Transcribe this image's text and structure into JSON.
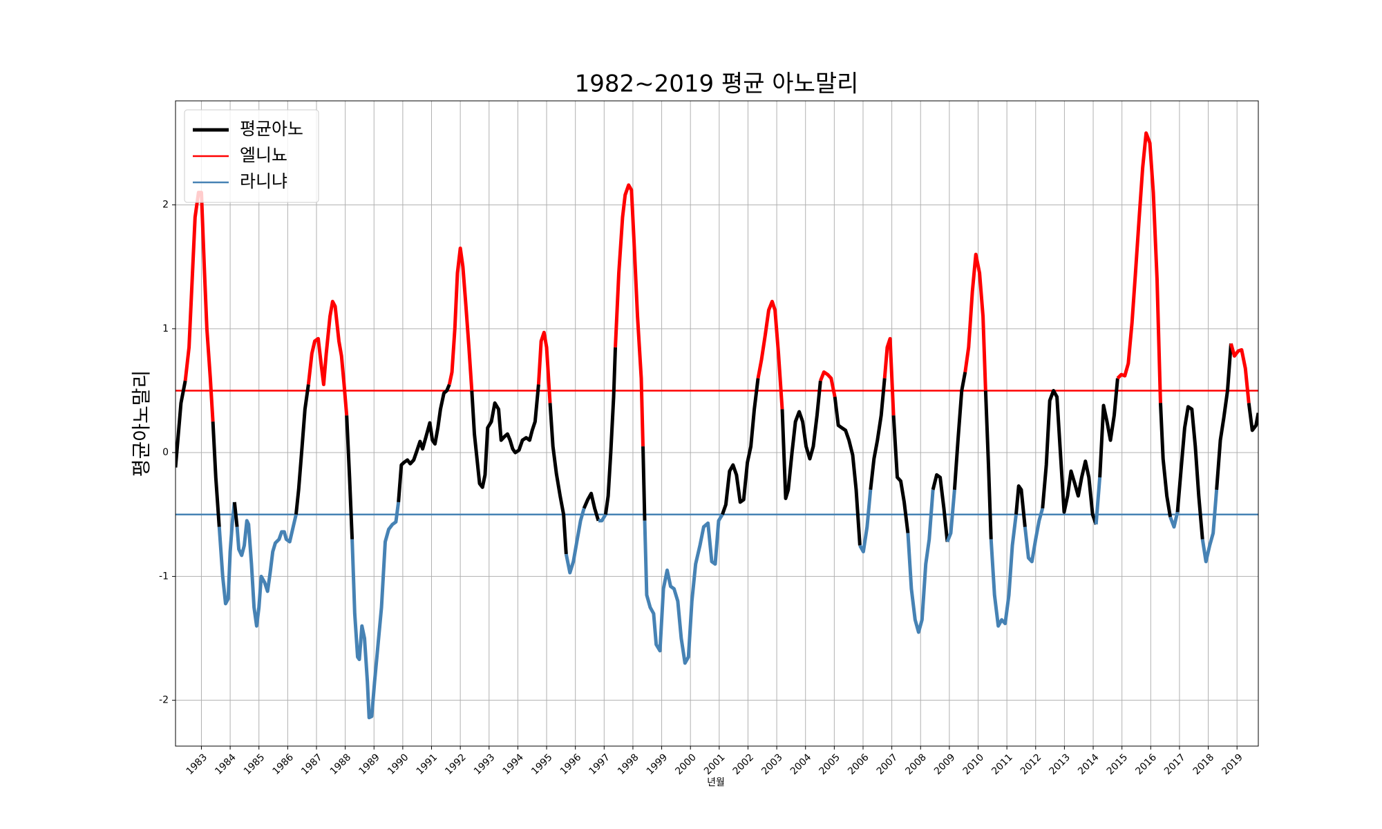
{
  "chart_data": {
    "type": "line",
    "title": "1982~2019 평균 아노말리",
    "x_label": "년월",
    "y_label": "평균아노말리",
    "series": [
      {
        "name": "평균아노",
        "color": "#000000",
        "x": [
          1982.1,
          1982.29,
          1982.44,
          1982.57,
          1982.66,
          1982.78,
          1982.9,
          1983.0,
          1983.1,
          1983.19,
          1983.31,
          1983.4,
          1983.5,
          1983.62,
          1983.74,
          1983.84,
          1983.93,
          1984.0,
          1984.08,
          1984.15,
          1984.24,
          1984.3,
          1984.4,
          1984.49,
          1984.58,
          1984.64,
          1984.74,
          1984.83,
          1984.92,
          1985.0,
          1985.08,
          1985.2,
          1985.3,
          1985.39,
          1985.48,
          1985.57,
          1985.7,
          1985.79,
          1985.88,
          1985.95,
          1986.07,
          1986.16,
          1986.29,
          1986.38,
          1986.5,
          1986.6,
          1986.72,
          1986.84,
          1986.94,
          1987.06,
          1987.16,
          1987.25,
          1987.34,
          1987.47,
          1987.56,
          1987.65,
          1987.78,
          1987.87,
          1987.96,
          1988.05,
          1988.15,
          1988.24,
          1988.33,
          1988.43,
          1988.49,
          1988.58,
          1988.67,
          1988.77,
          1988.83,
          1988.92,
          1989.02,
          1989.14,
          1989.26,
          1989.39,
          1989.51,
          1989.64,
          1989.76,
          1989.85,
          1989.95,
          1990.04,
          1990.16,
          1990.26,
          1990.38,
          1990.47,
          1990.6,
          1990.69,
          1990.81,
          1990.94,
          1991.03,
          1991.12,
          1991.22,
          1991.31,
          1991.43,
          1991.53,
          1991.62,
          1991.71,
          1991.81,
          1991.9,
          1992.0,
          1992.09,
          1992.19,
          1992.3,
          1992.4,
          1992.49,
          1992.58,
          1992.67,
          1992.77,
          1992.86,
          1992.95,
          1993.08,
          1993.2,
          1993.33,
          1993.42,
          1993.54,
          1993.64,
          1993.73,
          1993.82,
          1993.91,
          1994.04,
          1994.16,
          1994.29,
          1994.41,
          1994.5,
          1994.6,
          1994.72,
          1994.81,
          1994.91,
          1995.0,
          1995.12,
          1995.22,
          1995.34,
          1995.47,
          1995.59,
          1995.68,
          1995.81,
          1995.93,
          1996.05,
          1996.18,
          1996.3,
          1996.43,
          1996.55,
          1996.67,
          1996.8,
          1996.92,
          1997.05,
          1997.14,
          1997.23,
          1997.33,
          1997.39,
          1997.51,
          1997.64,
          1997.73,
          1997.85,
          1997.95,
          1998.04,
          1998.16,
          1998.29,
          1998.35,
          1998.41,
          1998.48,
          1998.6,
          1998.72,
          1998.81,
          1998.94,
          1999.06,
          1999.19,
          1999.31,
          1999.43,
          1999.56,
          1999.68,
          1999.81,
          1999.93,
          2000.05,
          2000.18,
          2000.33,
          2000.46,
          2000.61,
          2000.74,
          2000.86,
          2000.98,
          2001.11,
          2001.23,
          2001.36,
          2001.48,
          2001.6,
          2001.73,
          2001.85,
          2001.98,
          2002.1,
          2002.22,
          2002.35,
          2002.47,
          2002.6,
          2002.72,
          2002.84,
          2002.94,
          2003.06,
          2003.19,
          2003.31,
          2003.4,
          2003.53,
          2003.65,
          2003.78,
          2003.9,
          2004.02,
          2004.15,
          2004.27,
          2004.4,
          2004.52,
          2004.64,
          2004.77,
          2004.89,
          2005.02,
          2005.14,
          2005.26,
          2005.39,
          2005.51,
          2005.64,
          2005.76,
          2005.89,
          2006.01,
          2006.14,
          2006.26,
          2006.38,
          2006.5,
          2006.63,
          2006.75,
          2006.84,
          2006.94,
          2007.06,
          2007.19,
          2007.31,
          2007.43,
          2007.56,
          2007.68,
          2007.81,
          2007.93,
          2008.05,
          2008.18,
          2008.3,
          2008.43,
          2008.56,
          2008.68,
          2008.81,
          2008.93,
          2009.05,
          2009.18,
          2009.3,
          2009.43,
          2009.55,
          2009.67,
          2009.8,
          2009.92,
          2010.05,
          2010.17,
          2010.26,
          2010.36,
          2010.45,
          2010.57,
          2010.7,
          2010.82,
          2010.94,
          2011.07,
          2011.19,
          2011.32,
          2011.41,
          2011.5,
          2011.63,
          2011.75,
          2011.87,
          2012.0,
          2012.12,
          2012.24,
          2012.37,
          2012.49,
          2012.62,
          2012.74,
          2012.86,
          2012.99,
          2013.11,
          2013.23,
          2013.36,
          2013.48,
          2013.6,
          2013.73,
          2013.85,
          2013.98,
          2014.1,
          2014.23,
          2014.36,
          2014.48,
          2014.6,
          2014.73,
          2014.85,
          2014.98,
          2015.1,
          2015.22,
          2015.35,
          2015.47,
          2015.6,
          2015.72,
          2015.84,
          2015.97,
          2016.09,
          2016.22,
          2016.34,
          2016.43,
          2016.56,
          2016.68,
          2016.81,
          2016.93,
          2017.05,
          2017.18,
          2017.3,
          2017.43,
          2017.55,
          2017.67,
          2017.8,
          2017.92,
          2018.05,
          2018.17,
          2018.29,
          2018.42,
          2018.54,
          2018.67,
          2018.79,
          2018.91,
          2019.04,
          2019.16,
          2019.29,
          2019.41,
          2019.53,
          2019.66,
          2019.74
        ],
        "values": [
          -0.12,
          0.4,
          0.58,
          0.85,
          1.3,
          1.9,
          2.1,
          2.1,
          1.5,
          1.0,
          0.6,
          0.25,
          -0.2,
          -0.6,
          -1.0,
          -1.22,
          -1.18,
          -0.8,
          -0.55,
          -0.4,
          -0.6,
          -0.78,
          -0.83,
          -0.75,
          -0.55,
          -0.58,
          -0.9,
          -1.25,
          -1.4,
          -1.25,
          -1.0,
          -1.05,
          -1.12,
          -0.97,
          -0.8,
          -0.73,
          -0.7,
          -0.64,
          -0.64,
          -0.7,
          -0.72,
          -0.63,
          -0.5,
          -0.3,
          0.05,
          0.35,
          0.55,
          0.8,
          0.9,
          0.92,
          0.72,
          0.55,
          0.8,
          1.1,
          1.22,
          1.18,
          0.9,
          0.78,
          0.55,
          0.3,
          -0.2,
          -0.7,
          -1.3,
          -1.65,
          -1.67,
          -1.4,
          -1.5,
          -1.85,
          -2.14,
          -2.13,
          -1.85,
          -1.55,
          -1.25,
          -0.72,
          -0.62,
          -0.58,
          -0.56,
          -0.4,
          -0.1,
          -0.08,
          -0.06,
          -0.09,
          -0.06,
          0.0,
          0.09,
          0.03,
          0.13,
          0.24,
          0.1,
          0.07,
          0.2,
          0.35,
          0.48,
          0.5,
          0.55,
          0.65,
          1.0,
          1.45,
          1.65,
          1.5,
          1.2,
          0.85,
          0.5,
          0.15,
          -0.05,
          -0.25,
          -0.28,
          -0.18,
          0.2,
          0.25,
          0.4,
          0.35,
          0.1,
          0.13,
          0.15,
          0.1,
          0.03,
          0.0,
          0.02,
          0.1,
          0.12,
          0.1,
          0.18,
          0.25,
          0.55,
          0.9,
          0.97,
          0.85,
          0.4,
          0.05,
          -0.17,
          -0.35,
          -0.5,
          -0.82,
          -0.97,
          -0.88,
          -0.72,
          -0.55,
          -0.45,
          -0.38,
          -0.33,
          -0.45,
          -0.55,
          -0.55,
          -0.5,
          -0.35,
          0.0,
          0.45,
          0.85,
          1.45,
          1.9,
          2.08,
          2.16,
          2.12,
          1.7,
          1.1,
          0.6,
          0.05,
          -0.55,
          -1.15,
          -1.25,
          -1.3,
          -1.55,
          -1.6,
          -1.1,
          -0.95,
          -1.08,
          -1.1,
          -1.2,
          -1.5,
          -1.7,
          -1.65,
          -1.2,
          -0.9,
          -0.75,
          -0.6,
          -0.57,
          -0.88,
          -0.9,
          -0.55,
          -0.5,
          -0.42,
          -0.15,
          -0.1,
          -0.18,
          -0.4,
          -0.38,
          -0.08,
          0.05,
          0.35,
          0.6,
          0.75,
          0.95,
          1.15,
          1.22,
          1.15,
          0.8,
          0.35,
          -0.37,
          -0.3,
          0.0,
          0.25,
          0.33,
          0.25,
          0.05,
          -0.05,
          0.05,
          0.3,
          0.58,
          0.65,
          0.63,
          0.6,
          0.45,
          0.22,
          0.2,
          0.18,
          0.1,
          -0.02,
          -0.3,
          -0.75,
          -0.8,
          -0.6,
          -0.3,
          -0.05,
          0.1,
          0.3,
          0.6,
          0.85,
          0.92,
          0.3,
          -0.2,
          -0.23,
          -0.4,
          -0.65,
          -1.1,
          -1.35,
          -1.45,
          -1.35,
          -0.9,
          -0.7,
          -0.3,
          -0.18,
          -0.2,
          -0.45,
          -0.72,
          -0.65,
          -0.3,
          0.1,
          0.5,
          0.65,
          0.85,
          1.3,
          1.6,
          1.45,
          1.1,
          0.5,
          -0.1,
          -0.7,
          -1.15,
          -1.4,
          -1.35,
          -1.38,
          -1.15,
          -0.75,
          -0.5,
          -0.27,
          -0.3,
          -0.6,
          -0.85,
          -0.88,
          -0.7,
          -0.55,
          -0.45,
          -0.1,
          0.42,
          0.5,
          0.45,
          0.0,
          -0.48,
          -0.35,
          -0.15,
          -0.25,
          -0.35,
          -0.2,
          -0.07,
          -0.2,
          -0.5,
          -0.58,
          -0.2,
          0.38,
          0.25,
          0.1,
          0.3,
          0.6,
          0.63,
          0.62,
          0.72,
          1.05,
          1.45,
          1.9,
          2.3,
          2.58,
          2.5,
          2.1,
          1.4,
          0.4,
          -0.05,
          -0.35,
          -0.52,
          -0.6,
          -0.48,
          -0.15,
          0.2,
          0.37,
          0.35,
          0.05,
          -0.35,
          -0.7,
          -0.88,
          -0.75,
          -0.65,
          -0.3,
          0.1,
          0.28,
          0.5,
          0.88,
          0.78,
          0.82,
          0.83,
          0.68,
          0.4,
          0.18,
          0.22,
          0.32
        ]
      }
    ],
    "hlines": [
      {
        "name": "엘니뇨",
        "value": 0.5,
        "color": "#ff0000",
        "side": "above"
      },
      {
        "name": "라니냐",
        "value": -0.5,
        "color": "#4682b4",
        "side": "below"
      }
    ],
    "xlim": [
      1982.1,
      2019.74
    ],
    "xticks": [
      1983,
      1984,
      1985,
      1986,
      1987,
      1988,
      1989,
      1990,
      1991,
      1992,
      1993,
      1994,
      1995,
      1996,
      1997,
      1998,
      1999,
      2000,
      2001,
      2002,
      2003,
      2004,
      2005,
      2006,
      2007,
      2008,
      2009,
      2010,
      2011,
      2012,
      2013,
      2014,
      2015,
      2016,
      2017,
      2018,
      2019
    ],
    "ylim": [
      -2.37,
      2.84
    ],
    "yticks": [
      -2,
      -1,
      0,
      1,
      2
    ],
    "grid": true,
    "legend": "upper left"
  }
}
